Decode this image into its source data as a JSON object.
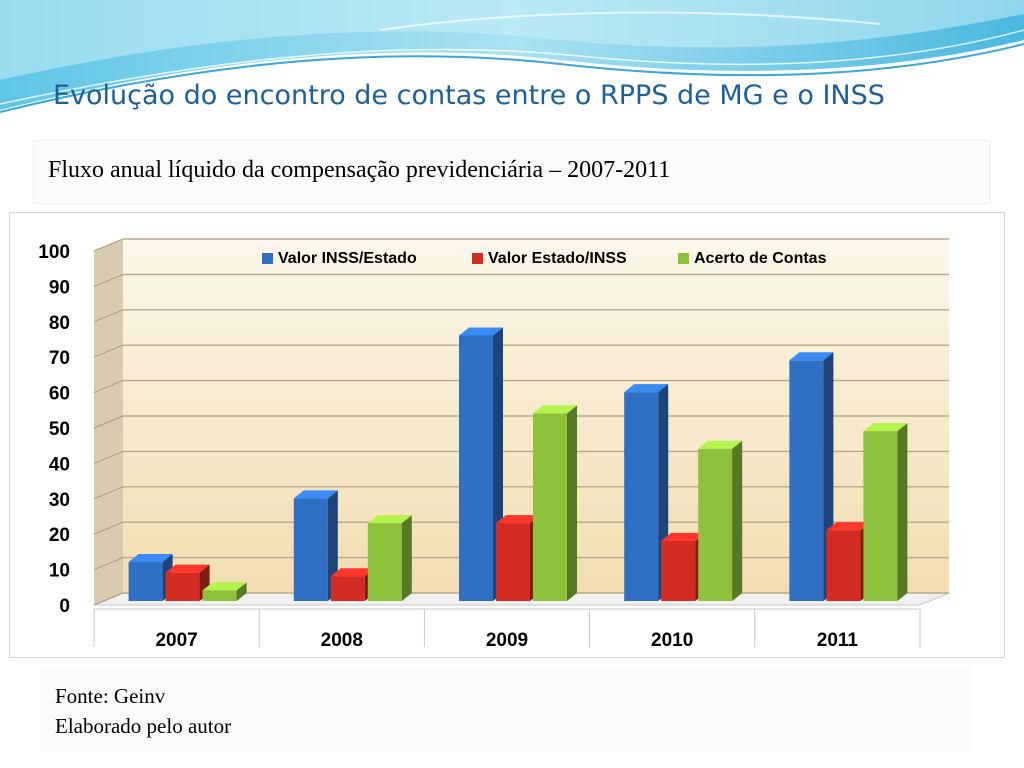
{
  "slide": {
    "title": "Evolução do encontro de contas entre o RPPS de MG e o INSS",
    "subtitle": "Fluxo anual líquido da compensação previdenciária – 2007-2011",
    "source_lines": [
      "Fonte: Geinv",
      "Elaborado pelo autor"
    ]
  },
  "chart_data": {
    "type": "bar",
    "title": "",
    "xlabel": "",
    "ylabel": "",
    "categories": [
      "2007",
      "2008",
      "2009",
      "2010",
      "2011"
    ],
    "series": [
      {
        "name": "Valor INSS/Estado",
        "color": "#2f6fc4",
        "values": [
          11,
          29,
          75,
          59,
          68
        ]
      },
      {
        "name": "Valor Estado/INSS",
        "color": "#d42b22",
        "values": [
          8,
          7,
          22,
          17,
          20
        ]
      },
      {
        "name": "Acerto de Contas",
        "color": "#8ec23d",
        "values": [
          3,
          22,
          53,
          43,
          48
        ]
      }
    ],
    "ylim": [
      0,
      100
    ],
    "yticks": [
      0,
      10,
      20,
      30,
      40,
      50,
      60,
      70,
      80,
      90,
      100
    ],
    "grid": true,
    "legend": "top",
    "style": "3d-clustered-column"
  }
}
